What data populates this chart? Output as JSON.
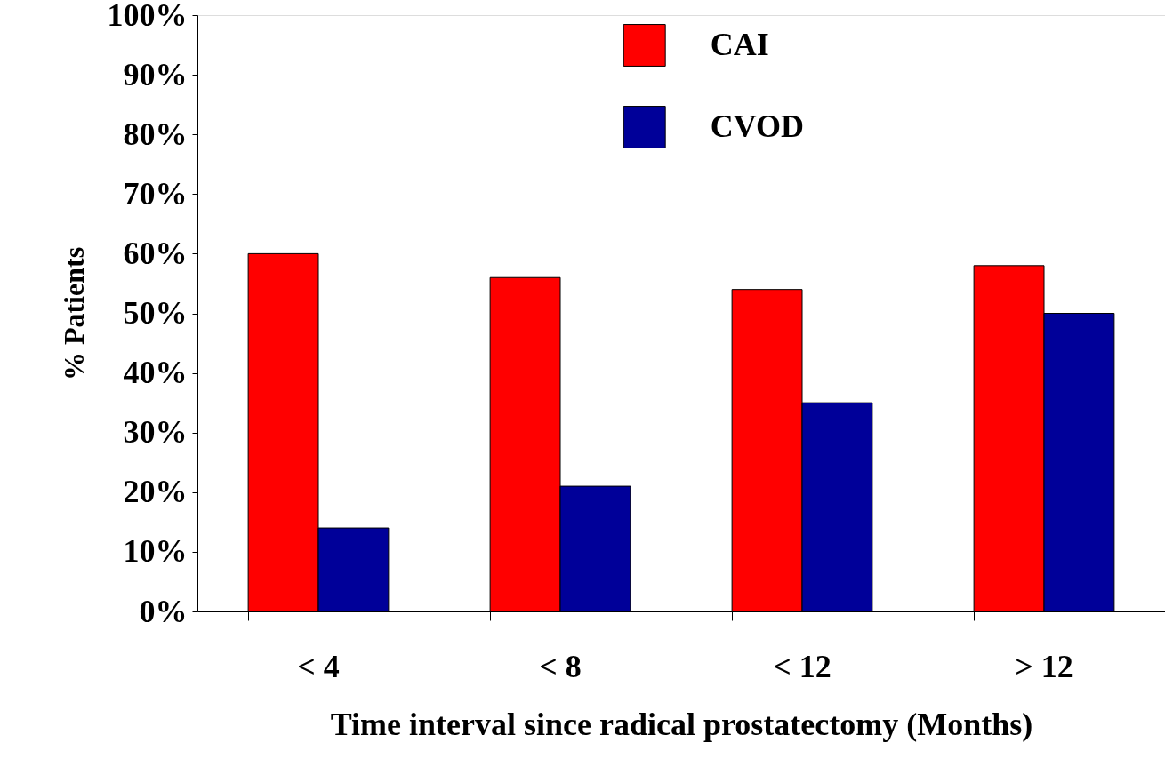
{
  "chart_data": {
    "type": "bar",
    "xlabel": "Time interval since radical prostatectomy (Months)",
    "ylabel": "% Patients",
    "categories": [
      "< 4",
      "< 8",
      "< 12",
      "> 12"
    ],
    "series": [
      {
        "name": "CAI",
        "color": "#ff0000",
        "values": [
          60,
          56,
          54,
          58
        ]
      },
      {
        "name": "CVOD",
        "color": "#000099",
        "values": [
          14,
          21,
          35,
          50
        ]
      }
    ],
    "ylim": [
      0,
      100
    ],
    "yticks": [
      {
        "value": 0,
        "label": "0%"
      },
      {
        "value": 10,
        "label": "10%"
      },
      {
        "value": 20,
        "label": "20%"
      },
      {
        "value": 30,
        "label": "30%"
      },
      {
        "value": 40,
        "label": "40%"
      },
      {
        "value": 50,
        "label": "50%"
      },
      {
        "value": 60,
        "label": "60%"
      },
      {
        "value": 70,
        "label": "70%"
      },
      {
        "value": 80,
        "label": "80%"
      },
      {
        "value": 90,
        "label": "90%"
      },
      {
        "value": 100,
        "label": "100%"
      }
    ],
    "grid": false,
    "legend": "top"
  }
}
